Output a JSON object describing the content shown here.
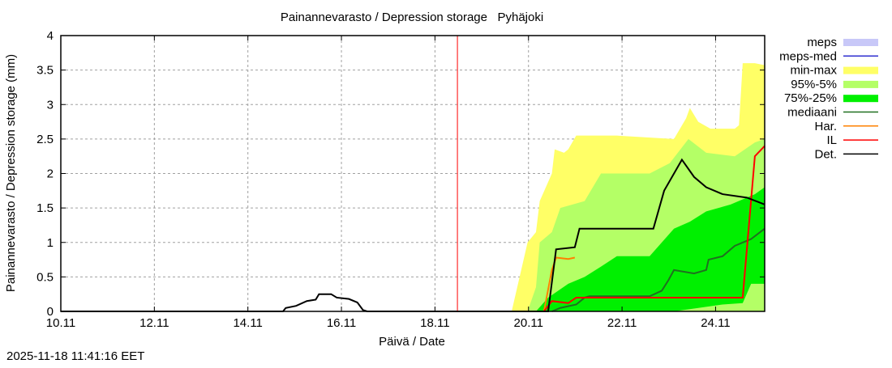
{
  "chart_data": {
    "type": "area",
    "title": "Painannevarasto / Depression storage   Pyhäjoki",
    "xlabel": "Päivä / Date",
    "ylabel": "Painannevarasto / Depression storage (mm)",
    "timestamp": "2025-11-18 11:41:16 EET",
    "xlim": [
      10,
      25.05
    ],
    "ylim": [
      0,
      4
    ],
    "grid": true,
    "legend_position": "right",
    "x_ticks": [
      {
        "v": 10,
        "label": "10.11"
      },
      {
        "v": 12,
        "label": "12.11"
      },
      {
        "v": 14,
        "label": "14.11"
      },
      {
        "v": 16,
        "label": "16.11"
      },
      {
        "v": 18,
        "label": "18.11"
      },
      {
        "v": 20,
        "label": "20.11"
      },
      {
        "v": 22,
        "label": "22.11"
      },
      {
        "v": 24,
        "label": "24.11"
      }
    ],
    "y_ticks": [
      {
        "v": 0,
        "label": "0"
      },
      {
        "v": 0.5,
        "label": "0.5"
      },
      {
        "v": 1,
        "label": "1"
      },
      {
        "v": 1.5,
        "label": "1.5"
      },
      {
        "v": 2,
        "label": "2"
      },
      {
        "v": 2.5,
        "label": "2.5"
      },
      {
        "v": 3,
        "label": "3"
      },
      {
        "v": 3.5,
        "label": "3.5"
      },
      {
        "v": 4,
        "label": "4"
      }
    ],
    "now_line": 18.48,
    "legend": [
      {
        "label": "meps",
        "kind": "box",
        "color": "#c8c8f8"
      },
      {
        "label": "meps-med",
        "kind": "line",
        "color": "#3030d0"
      },
      {
        "label": "min-max",
        "kind": "box",
        "color": "#ffff66"
      },
      {
        "label": "95%-5%",
        "kind": "box",
        "color": "#b4ff66"
      },
      {
        "label": "75%-25%",
        "kind": "box",
        "color": "#00f000"
      },
      {
        "label": "mediaani",
        "kind": "line",
        "color": "#207020"
      },
      {
        "label": "Har.",
        "kind": "line",
        "color": "#ff8000"
      },
      {
        "label": "IL",
        "kind": "line",
        "color": "#ff0000"
      },
      {
        "label": "Det.",
        "kind": "line",
        "color": "#000000"
      }
    ],
    "bands": [
      {
        "name": "min-max",
        "color": "#ffff66",
        "upper": [
          [
            19.64,
            0
          ],
          [
            19.81,
            0.5
          ],
          [
            19.98,
            1.0
          ],
          [
            20.16,
            1.15
          ],
          [
            20.24,
            1.6
          ],
          [
            20.5,
            2.0
          ],
          [
            20.56,
            2.35
          ],
          [
            20.76,
            2.3
          ],
          [
            20.85,
            2.35
          ],
          [
            21.02,
            2.55
          ],
          [
            21.89,
            2.55
          ],
          [
            23.11,
            2.5
          ],
          [
            23.37,
            2.8
          ],
          [
            23.45,
            2.95
          ],
          [
            23.63,
            2.75
          ],
          [
            23.89,
            2.65
          ],
          [
            24.41,
            2.65
          ],
          [
            24.5,
            2.7
          ],
          [
            24.58,
            3.6
          ],
          [
            24.84,
            3.6
          ],
          [
            25.05,
            3.57
          ]
        ],
        "lower": [
          [
            19.64,
            0
          ],
          [
            25.05,
            0
          ]
        ]
      },
      {
        "name": "95%-5%",
        "color": "#b4ff66",
        "upper": [
          [
            19.98,
            0
          ],
          [
            20.16,
            0.35
          ],
          [
            20.24,
            1.0
          ],
          [
            20.5,
            1.15
          ],
          [
            20.68,
            1.5
          ],
          [
            21.2,
            1.6
          ],
          [
            21.55,
            2.0
          ],
          [
            22.59,
            2.0
          ],
          [
            23.02,
            2.15
          ],
          [
            23.42,
            2.5
          ],
          [
            23.8,
            2.3
          ],
          [
            24.41,
            2.25
          ],
          [
            24.84,
            2.45
          ],
          [
            25.05,
            2.5
          ]
        ],
        "lower": [
          [
            19.98,
            0
          ],
          [
            25.05,
            0
          ]
        ]
      },
      {
        "name": "75%-25%",
        "color": "#00f000",
        "upper": [
          [
            20.16,
            0
          ],
          [
            20.42,
            0.2
          ],
          [
            20.85,
            0.4
          ],
          [
            21.2,
            0.5
          ],
          [
            21.55,
            0.65
          ],
          [
            21.89,
            0.8
          ],
          [
            22.59,
            0.8
          ],
          [
            22.85,
            1.0
          ],
          [
            23.11,
            1.2
          ],
          [
            23.45,
            1.3
          ],
          [
            23.8,
            1.45
          ],
          [
            24.32,
            1.55
          ],
          [
            24.84,
            1.7
          ],
          [
            25.05,
            1.8
          ]
        ],
        "lower": [
          [
            20.16,
            0
          ],
          [
            23.11,
            0
          ],
          [
            23.63,
            0.05
          ],
          [
            24.15,
            0.1
          ],
          [
            24.58,
            0.12
          ],
          [
            24.76,
            0.4
          ],
          [
            25.05,
            0.4
          ]
        ]
      }
    ],
    "series": [
      {
        "name": "mediaani",
        "color": "#207020",
        "points": [
          [
            20.5,
            0
          ],
          [
            20.68,
            0.05
          ],
          [
            21.02,
            0.1
          ],
          [
            21.11,
            0.15
          ],
          [
            21.2,
            0.2
          ],
          [
            21.3,
            0.22
          ],
          [
            22.59,
            0.22
          ],
          [
            22.85,
            0.3
          ],
          [
            22.99,
            0.45
          ],
          [
            23.11,
            0.6
          ],
          [
            23.54,
            0.55
          ],
          [
            23.8,
            0.6
          ],
          [
            23.85,
            0.75
          ],
          [
            24.15,
            0.8
          ],
          [
            24.41,
            0.95
          ],
          [
            24.76,
            1.05
          ],
          [
            25.05,
            1.2
          ]
        ]
      },
      {
        "name": "Har.",
        "color": "#ff8000",
        "points": [
          [
            20.33,
            0
          ],
          [
            20.5,
            0.6
          ],
          [
            20.59,
            0.78
          ],
          [
            20.85,
            0.76
          ],
          [
            20.99,
            0.78
          ]
        ]
      },
      {
        "name": "IL",
        "color": "#ff0000",
        "points": [
          [
            20.33,
            0
          ],
          [
            20.5,
            0.15
          ],
          [
            20.85,
            0.12
          ],
          [
            21.02,
            0.2
          ],
          [
            24.58,
            0.2
          ],
          [
            24.84,
            2.25
          ],
          [
            25.05,
            2.4
          ]
        ]
      },
      {
        "name": "Det.",
        "color": "#000000",
        "points": [
          [
            10,
            0
          ],
          [
            14.75,
            0
          ],
          [
            14.81,
            0.05
          ],
          [
            15.03,
            0.08
          ],
          [
            15.26,
            0.15
          ],
          [
            15.45,
            0.17
          ],
          [
            15.52,
            0.25
          ],
          [
            15.78,
            0.25
          ],
          [
            15.9,
            0.2
          ],
          [
            16.16,
            0.18
          ],
          [
            16.34,
            0.13
          ],
          [
            16.46,
            0.02
          ],
          [
            16.55,
            0
          ],
          [
            20.42,
            0
          ],
          [
            20.59,
            0.9
          ],
          [
            20.99,
            0.93
          ],
          [
            21.09,
            1.2
          ],
          [
            22.67,
            1.2
          ],
          [
            22.9,
            1.75
          ],
          [
            23.28,
            2.2
          ],
          [
            23.54,
            1.95
          ],
          [
            23.8,
            1.8
          ],
          [
            24.15,
            1.7
          ],
          [
            24.67,
            1.65
          ],
          [
            25.05,
            1.55
          ]
        ]
      }
    ]
  }
}
